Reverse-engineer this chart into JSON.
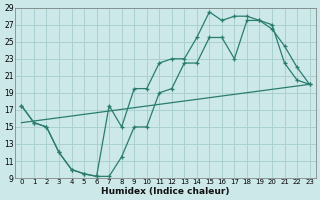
{
  "xlabel": "Humidex (Indice chaleur)",
  "bg_color": "#cce8e8",
  "grid_color": "#aad0d0",
  "line_color": "#2a7d6e",
  "xlim": [
    -0.5,
    23.5
  ],
  "ylim": [
    9,
    29
  ],
  "xticks": [
    0,
    1,
    2,
    3,
    4,
    5,
    6,
    7,
    8,
    9,
    10,
    11,
    12,
    13,
    14,
    15,
    16,
    17,
    18,
    19,
    20,
    21,
    22,
    23
  ],
  "yticks": [
    9,
    11,
    13,
    15,
    17,
    19,
    21,
    23,
    25,
    27,
    29
  ],
  "xticklabels": [
    "0",
    "1",
    "2",
    "3",
    "4",
    "5",
    "6",
    "7",
    "8",
    "9",
    "10",
    "11",
    "12",
    "13",
    "14",
    "15",
    "16",
    "17",
    "18",
    "19",
    "20",
    "21",
    "22",
    "23"
  ],
  "line1_x": [
    0,
    1,
    2,
    3,
    4,
    5,
    6,
    7,
    8,
    9,
    10,
    11,
    12,
    13,
    14,
    15,
    16,
    17,
    18,
    19,
    20,
    21,
    22,
    23
  ],
  "line1_y": [
    17.5,
    15.5,
    15.0,
    12.0,
    10.0,
    9.5,
    9.2,
    9.2,
    11.5,
    15.0,
    15.0,
    19.0,
    19.5,
    22.5,
    22.5,
    25.5,
    25.5,
    23.0,
    27.5,
    27.5,
    27.0,
    22.5,
    20.5,
    20.0
  ],
  "line2_x": [
    0,
    1,
    2,
    3,
    4,
    5,
    6,
    7,
    8,
    9,
    10,
    11,
    12,
    13,
    14,
    15,
    16,
    17,
    18,
    19,
    20,
    21,
    22,
    23
  ],
  "line2_y": [
    17.5,
    15.5,
    15.0,
    12.0,
    10.0,
    9.5,
    9.2,
    17.5,
    15.0,
    19.5,
    19.5,
    22.5,
    23.0,
    23.0,
    25.5,
    28.5,
    27.5,
    28.0,
    28.0,
    27.5,
    26.5,
    24.5,
    22.0,
    20.0
  ],
  "line3_x": [
    0,
    23
  ],
  "line3_y": [
    15.5,
    20.0
  ]
}
